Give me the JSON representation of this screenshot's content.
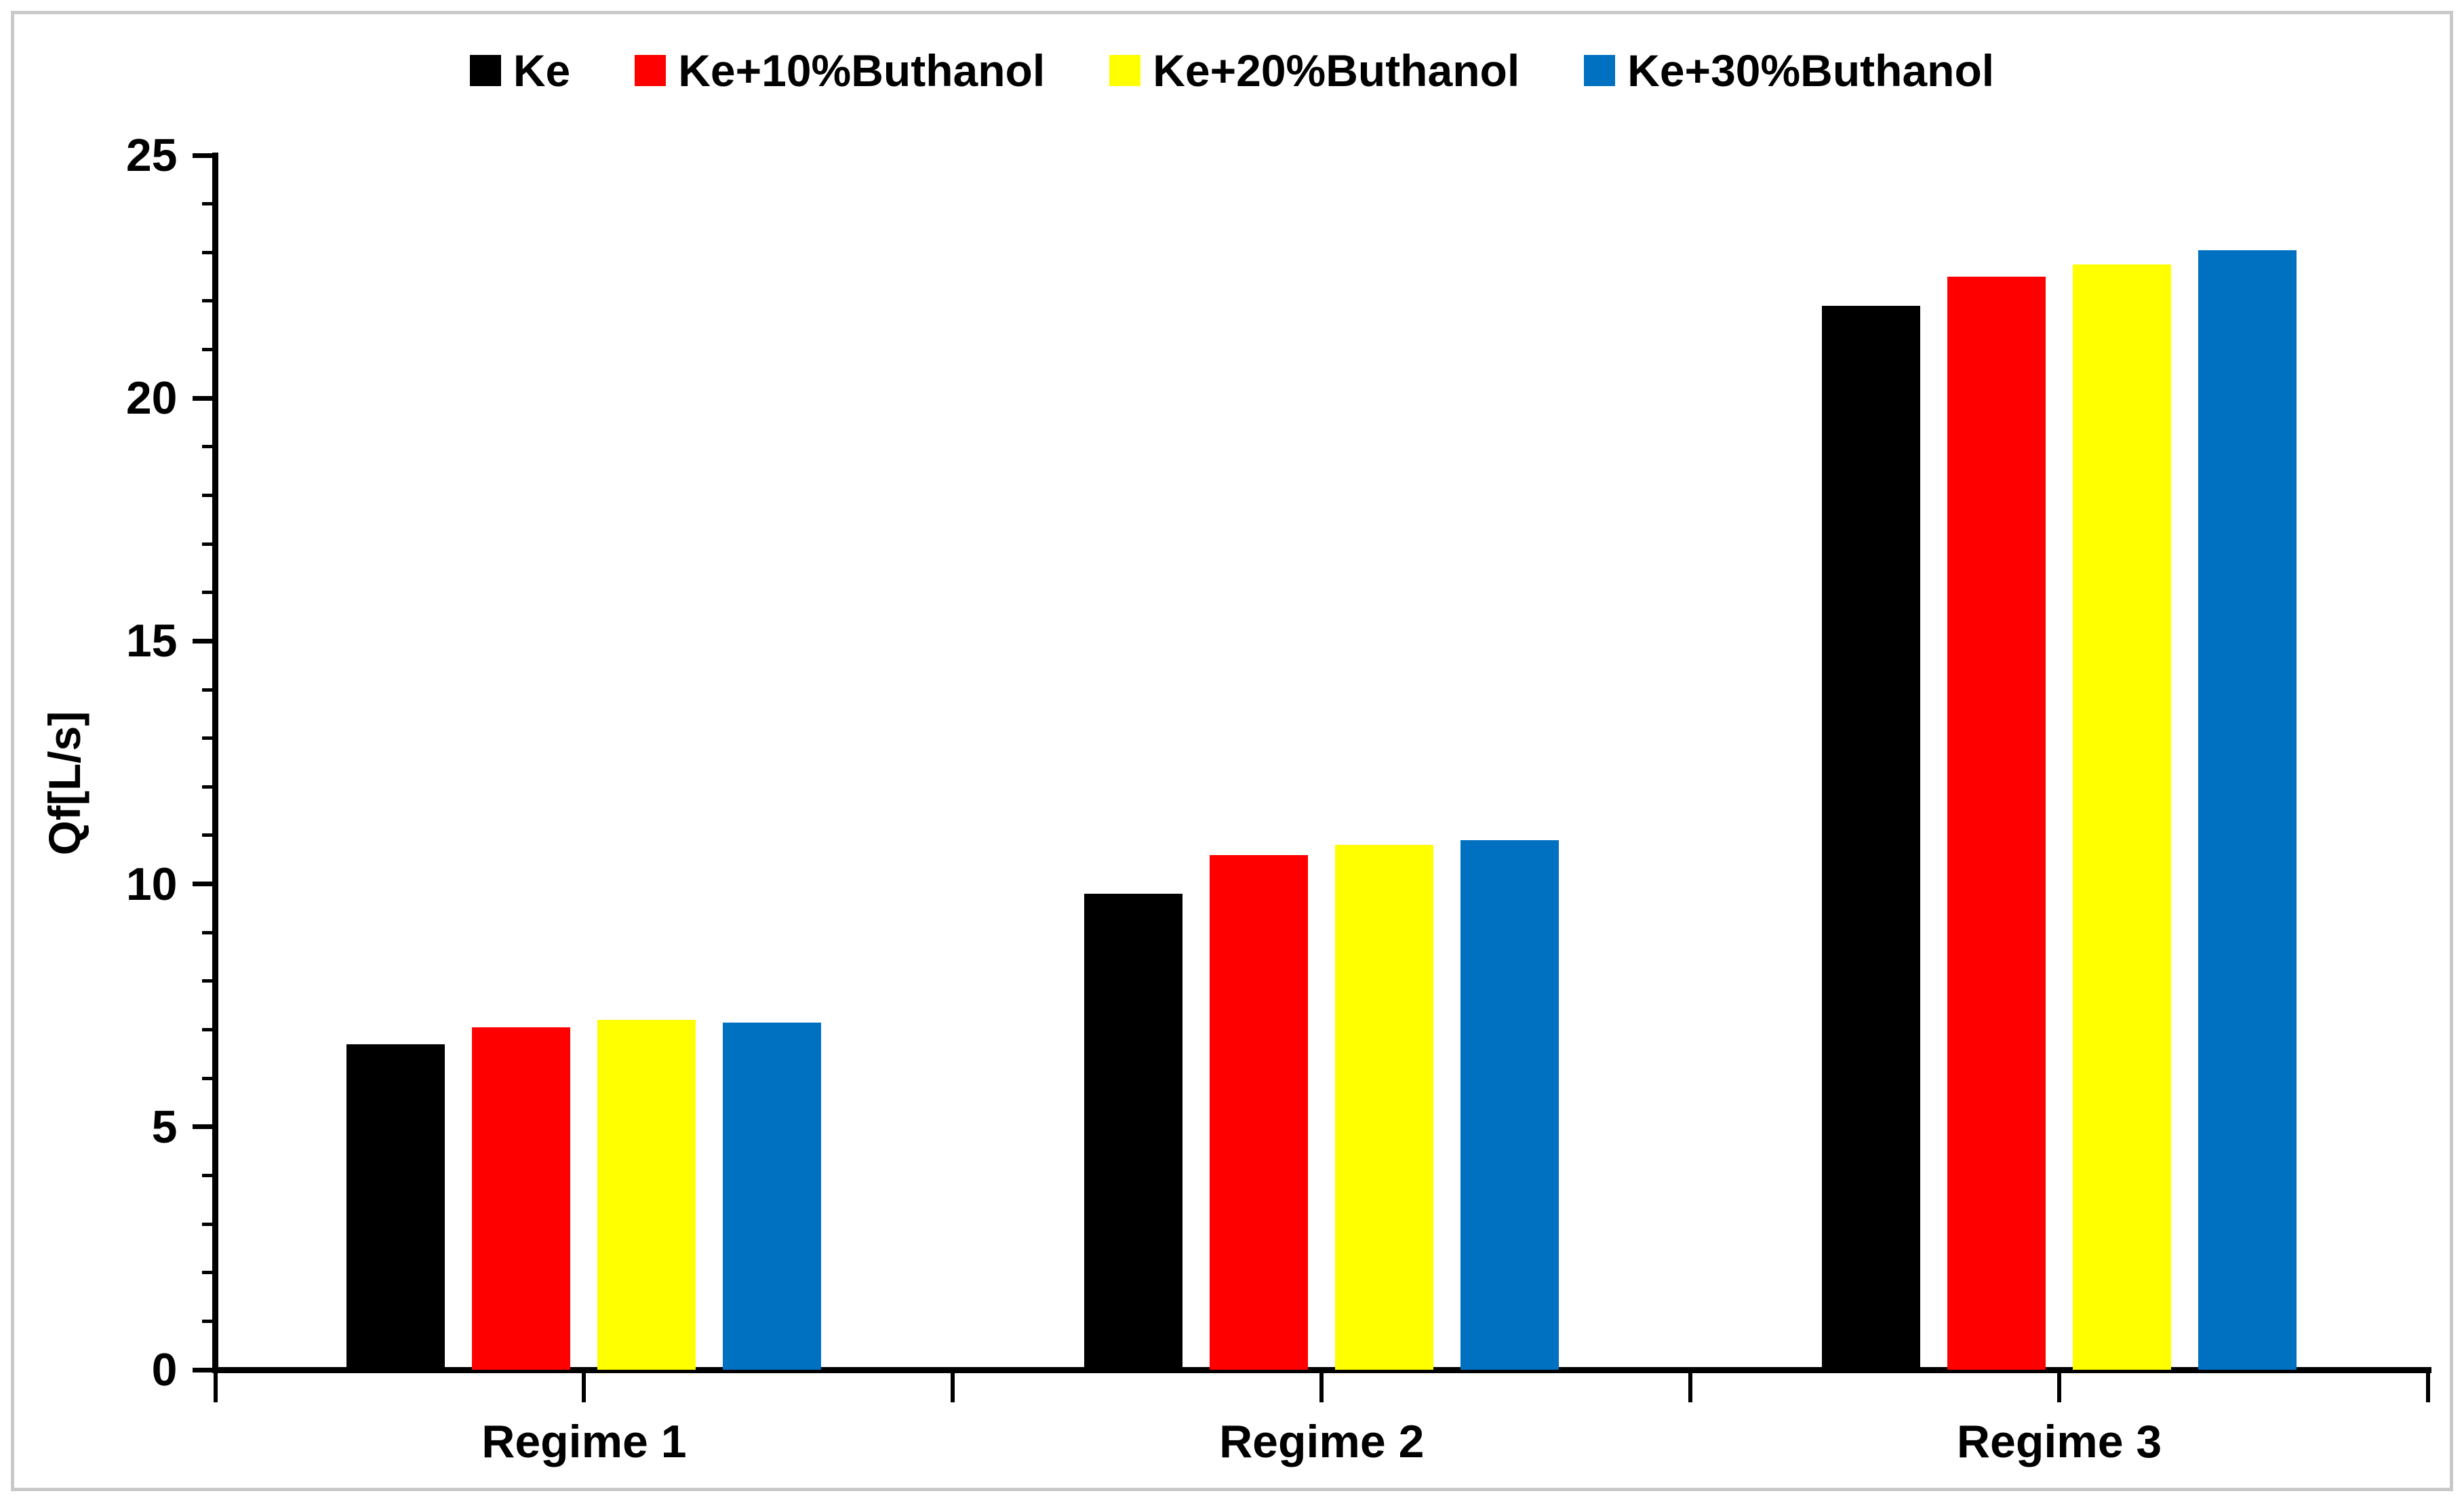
{
  "figure": {
    "background": "#ffffff",
    "border_color": "#c9c9c9"
  },
  "chart_data": {
    "type": "bar",
    "title": "",
    "categories": [
      "Regime 1",
      "Regime 2",
      "Regime 3"
    ],
    "series": [
      {
        "name": "Ke",
        "color": "#000000",
        "values": [
          6.7,
          9.8,
          21.9
        ]
      },
      {
        "name": "Ke+10%Buthanol",
        "color": "#ff0000",
        "values": [
          7.05,
          10.6,
          22.5
        ]
      },
      {
        "name": "Ke+20%Buthanol",
        "color": "#ffff00",
        "values": [
          7.2,
          10.8,
          22.75
        ]
      },
      {
        "name": "Ke+30%Buthanol",
        "color": "#0070c0",
        "values": [
          7.15,
          10.9,
          23.05
        ]
      }
    ],
    "xlabel": "",
    "ylabel": "Qf[L/s]",
    "ylim": [
      0,
      25
    ],
    "yticks": [
      0,
      5,
      10,
      15,
      20,
      25
    ],
    "minor_y_tick_step": 1,
    "legend_position": "top",
    "grid": false,
    "axis_color": "#000000"
  }
}
